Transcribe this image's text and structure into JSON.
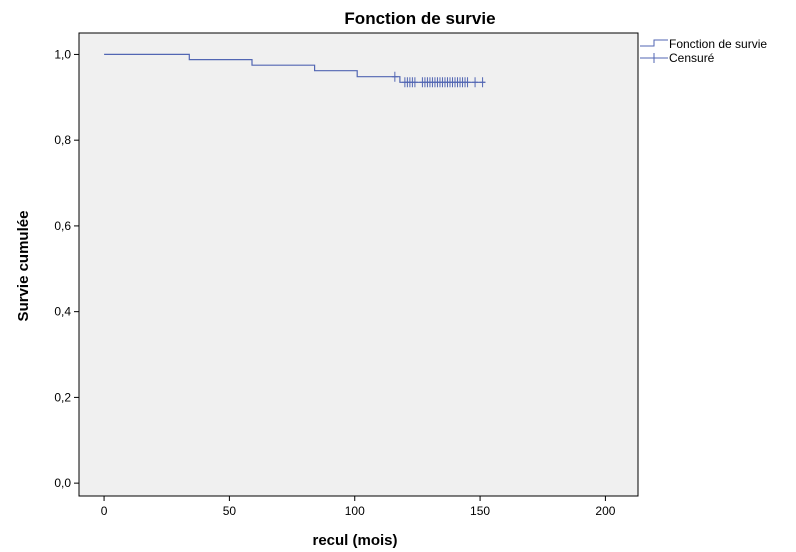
{
  "chart_data": {
    "type": "line",
    "title": "Fonction de survie",
    "xlabel": "recul (mois)",
    "ylabel": "Survie cumulée",
    "xlim": [
      -10,
      213
    ],
    "ylim": [
      -0.03,
      1.05
    ],
    "xticks": [
      0,
      50,
      100,
      150,
      200
    ],
    "xtick_labels": [
      "0",
      "50",
      "100",
      "150",
      "200"
    ],
    "yticks": [
      0.0,
      0.2,
      0.4,
      0.6,
      0.8,
      1.0
    ],
    "ytick_labels": [
      "0,0",
      "0,2",
      "0,4",
      "0,6",
      "0,8",
      "1,0"
    ],
    "grid": false,
    "legend_position": "right-top",
    "colors": {
      "series": "#5266b3",
      "plot_bg": "#f0f0f0",
      "axis": "#000000"
    },
    "series": [
      {
        "name": "Fonction de survie",
        "kind": "step",
        "x": [
          0,
          34,
          34,
          59,
          59,
          84,
          84,
          101,
          101,
          118,
          118,
          152
        ],
        "y": [
          1.0,
          1.0,
          0.988,
          0.988,
          0.975,
          0.975,
          0.962,
          0.962,
          0.948,
          0.948,
          0.935,
          0.935
        ]
      },
      {
        "name": "Censuré",
        "kind": "marker",
        "x": [
          116,
          120,
          121,
          122,
          123,
          124,
          127,
          128,
          129,
          130,
          131,
          132,
          133,
          134,
          135,
          136,
          137,
          138,
          139,
          140,
          141,
          142,
          143,
          144,
          145,
          148,
          151
        ],
        "y": [
          0.948,
          0.935,
          0.935,
          0.935,
          0.935,
          0.935,
          0.935,
          0.935,
          0.935,
          0.935,
          0.935,
          0.935,
          0.935,
          0.935,
          0.935,
          0.935,
          0.935,
          0.935,
          0.935,
          0.935,
          0.935,
          0.935,
          0.935,
          0.935,
          0.935,
          0.935,
          0.935
        ]
      }
    ]
  }
}
